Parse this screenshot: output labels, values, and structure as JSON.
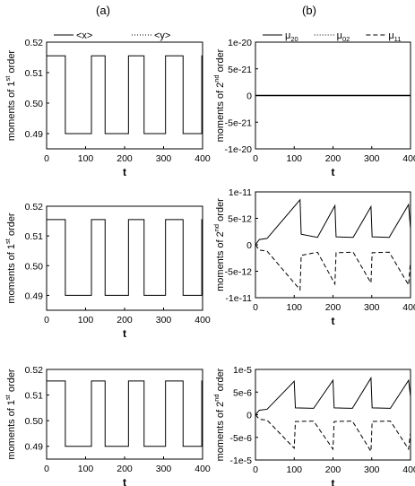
{
  "columns": [
    "(a)",
    "(b)"
  ],
  "chart_data": [
    {
      "type": "line",
      "panel": "a-top",
      "xlabel": "t",
      "ylabel": {
        "pre": "moments of 1",
        "sup": "st",
        "post": " order"
      },
      "xlim": [
        0,
        400
      ],
      "ylim": [
        0.485,
        0.52
      ],
      "xticks": [
        "0",
        "100",
        "200",
        "300",
        "400"
      ],
      "yticks": [
        "0.49",
        "0.50",
        "0.51",
        "0.52"
      ],
      "ytick_values": [
        0.49,
        0.5,
        0.51,
        0.52
      ],
      "legend": [
        {
          "name": "<x>",
          "style": "solid"
        },
        {
          "name": "<y>",
          "style": "dotted"
        }
      ],
      "series": [
        {
          "name": "<x>",
          "style": "solid",
          "shape": "square",
          "high": 0.5155,
          "low": 0.49,
          "start": 0.485,
          "high_intervals": [
            [
              0,
              48
            ],
            [
              115,
              150
            ],
            [
              210,
              250
            ],
            [
              305,
              350
            ],
            [
              398,
              400
            ]
          ]
        }
      ]
    },
    {
      "type": "line",
      "panel": "b-top",
      "xlabel": "t",
      "ylabel": {
        "pre": "moments of 2",
        "sup": "nd",
        "post": " order"
      },
      "xlim": [
        0,
        400
      ],
      "ylim": [
        -1e-20,
        1e-20
      ],
      "xticks": [
        "0",
        "100",
        "200",
        "300",
        "400"
      ],
      "yticks": [
        "1e-20",
        "5e-21",
        "0",
        "-5e-21",
        "-1e-20"
      ],
      "ytick_values": [
        1e-20,
        5e-21,
        0,
        -5e-21,
        -1e-20
      ],
      "legend": [
        {
          "name": "μ",
          "sub": "20",
          "style": "solid"
        },
        {
          "name": "μ",
          "sub": "02",
          "style": "dotted"
        },
        {
          "name": "μ",
          "sub": "11",
          "style": "dashed"
        }
      ],
      "series": [
        {
          "name": "μ20",
          "style": "solid",
          "shape": "zero"
        }
      ]
    },
    {
      "type": "line",
      "panel": "a-middle",
      "xlabel": "t",
      "ylabel": {
        "pre": "moments of 1",
        "sup": "st",
        "post": " order"
      },
      "xlim": [
        0,
        400
      ],
      "ylim": [
        0.485,
        0.52
      ],
      "xticks": [
        "0",
        "100",
        "200",
        "300",
        "400"
      ],
      "yticks": [
        "0.49",
        "0.50",
        "0.51",
        "0.52"
      ],
      "ytick_values": [
        0.49,
        0.5,
        0.51,
        0.52
      ],
      "series": [
        {
          "name": "<x>",
          "style": "solid",
          "shape": "square",
          "high": 0.5155,
          "low": 0.49,
          "start": 0.485,
          "high_intervals": [
            [
              0,
              48
            ],
            [
              115,
              150
            ],
            [
              210,
              250
            ],
            [
              305,
              350
            ],
            [
              398,
              400
            ]
          ]
        }
      ]
    },
    {
      "type": "line",
      "panel": "b-middle",
      "xlabel": "t",
      "ylabel": {
        "pre": "moments of 2",
        "sup": "nd",
        "post": " order"
      },
      "xlim": [
        0,
        400
      ],
      "ylim": [
        -1e-11,
        1e-11
      ],
      "xticks": [
        "0",
        "100",
        "200",
        "300",
        "400"
      ],
      "yticks": [
        "1e-11",
        "5e-12",
        "0",
        "-5e-12",
        "-1e-11"
      ],
      "ytick_values": [
        1e-11,
        5e-12,
        0,
        -5e-12,
        -1e-11
      ],
      "series": [
        {
          "name": "μ20",
          "style": "solid",
          "shape": "relax",
          "points": [
            [
              0,
              0
            ],
            [
              10,
              1e-12
            ],
            [
              30,
              1.2e-12
            ],
            [
              115,
              8.5e-12
            ],
            [
              118,
              2e-12
            ],
            [
              160,
              1.4e-12
            ],
            [
              205,
              7.4e-12
            ],
            [
              208,
              1.5e-12
            ],
            [
              252,
              1.4e-12
            ],
            [
              298,
              7.2e-12
            ],
            [
              301,
              1.5e-12
            ],
            [
              345,
              1.4e-12
            ],
            [
              395,
              7.6e-12
            ],
            [
              400,
              3e-12
            ]
          ]
        },
        {
          "name": "μ11",
          "style": "dashed",
          "shape": "relax",
          "points": [
            [
              0,
              0
            ],
            [
              10,
              -1e-12
            ],
            [
              30,
              -1.2e-12
            ],
            [
              115,
              -8.5e-12
            ],
            [
              118,
              -2e-12
            ],
            [
              160,
              -1.4e-12
            ],
            [
              205,
              -7.4e-12
            ],
            [
              208,
              -1.5e-12
            ],
            [
              252,
              -1.4e-12
            ],
            [
              298,
              -7.2e-12
            ],
            [
              301,
              -1.5e-12
            ],
            [
              345,
              -1.4e-12
            ],
            [
              395,
              -7.6e-12
            ],
            [
              400,
              -3e-12
            ]
          ]
        }
      ]
    },
    {
      "type": "line",
      "panel": "a-bottom",
      "xlabel": "t",
      "ylabel": {
        "pre": "moments of 1",
        "sup": "st",
        "post": " order"
      },
      "xlim": [
        0,
        400
      ],
      "ylim": [
        0.485,
        0.52
      ],
      "xticks": [
        "0",
        "100",
        "200",
        "300",
        "400"
      ],
      "yticks": [
        "0.49",
        "0.50",
        "0.51",
        "0.52"
      ],
      "ytick_values": [
        0.49,
        0.5,
        0.51,
        0.52
      ],
      "series": [
        {
          "name": "<x>",
          "style": "solid",
          "shape": "square",
          "high": 0.5155,
          "low": 0.49,
          "start": 0.485,
          "high_intervals": [
            [
              0,
              48
            ],
            [
              115,
              150
            ],
            [
              210,
              250
            ],
            [
              305,
              350
            ],
            [
              398,
              400
            ]
          ]
        }
      ]
    },
    {
      "type": "line",
      "panel": "b-bottom",
      "xlabel": "t",
      "ylabel": {
        "pre": "moments of 2",
        "sup": "nd",
        "post": " order"
      },
      "xlim": [
        0,
        400
      ],
      "ylim": [
        -1e-05,
        1e-05
      ],
      "xticks": [
        "0",
        "100",
        "200",
        "300",
        "400"
      ],
      "yticks": [
        "1e-5",
        "5e-6",
        "0",
        "-5e-6",
        "-1e-5"
      ],
      "ytick_values": [
        1e-05,
        5e-06,
        0,
        -5e-06,
        -1e-05
      ],
      "series": [
        {
          "name": "μ20",
          "style": "solid",
          "shape": "relax",
          "points": [
            [
              0,
              0
            ],
            [
              10,
              1e-06
            ],
            [
              30,
              1.2e-06
            ],
            [
              100,
              7.4e-06
            ],
            [
              103,
              1.5e-06
            ],
            [
              150,
              1.4e-06
            ],
            [
              200,
              7.6e-06
            ],
            [
              203,
              1.5e-06
            ],
            [
              250,
              1.4e-06
            ],
            [
              298,
              8.1e-06
            ],
            [
              301,
              1.5e-06
            ],
            [
              348,
              1.4e-06
            ],
            [
              395,
              7.6e-06
            ],
            [
              400,
              4e-06
            ]
          ]
        },
        {
          "name": "μ11",
          "style": "dashed",
          "shape": "relax",
          "points": [
            [
              0,
              0
            ],
            [
              10,
              -1e-06
            ],
            [
              30,
              -1.2e-06
            ],
            [
              100,
              -7.4e-06
            ],
            [
              103,
              -1.5e-06
            ],
            [
              150,
              -1.4e-06
            ],
            [
              200,
              -7.6e-06
            ],
            [
              203,
              -1.5e-06
            ],
            [
              250,
              -1.4e-06
            ],
            [
              298,
              -8.1e-06
            ],
            [
              301,
              -1.5e-06
            ],
            [
              348,
              -1.4e-06
            ],
            [
              395,
              -7.6e-06
            ],
            [
              400,
              -4e-06
            ]
          ]
        }
      ]
    }
  ]
}
